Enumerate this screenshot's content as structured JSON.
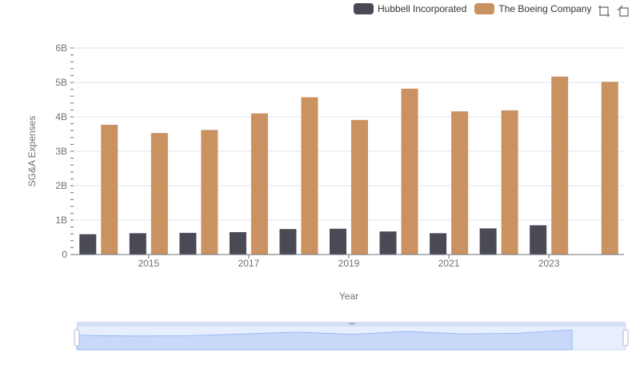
{
  "chart_data": {
    "type": "bar",
    "categories": [
      "2014",
      "2015",
      "2016",
      "2017",
      "2018",
      "2019",
      "2020",
      "2021",
      "2022",
      "2023",
      "2024"
    ],
    "tick_labels": [
      "2015",
      "2017",
      "2019",
      "2021",
      "2023"
    ],
    "series": [
      {
        "name": "Hubbell Incorporated",
        "color": "#4a4a55",
        "values": [
          0.59,
          0.62,
          0.63,
          0.65,
          0.74,
          0.75,
          0.67,
          0.62,
          0.76,
          0.85,
          null
        ]
      },
      {
        "name": "The Boeing Company",
        "color": "#c99260",
        "values": [
          3.77,
          3.53,
          3.62,
          4.1,
          4.57,
          3.91,
          4.82,
          4.16,
          4.19,
          5.17,
          5.02
        ]
      }
    ],
    "y_ticks": [
      "0",
      "1B",
      "2B",
      "3B",
      "4B",
      "5B",
      "6B"
    ],
    "ylim": [
      0,
      6
    ],
    "ylabel": "SG&A Expenses",
    "xlabel": "Year",
    "legend_position": "top-right",
    "grid": true
  },
  "toolbox": {
    "zoom_icon": "zoom-icon",
    "restore_icon": "restore-icon"
  }
}
